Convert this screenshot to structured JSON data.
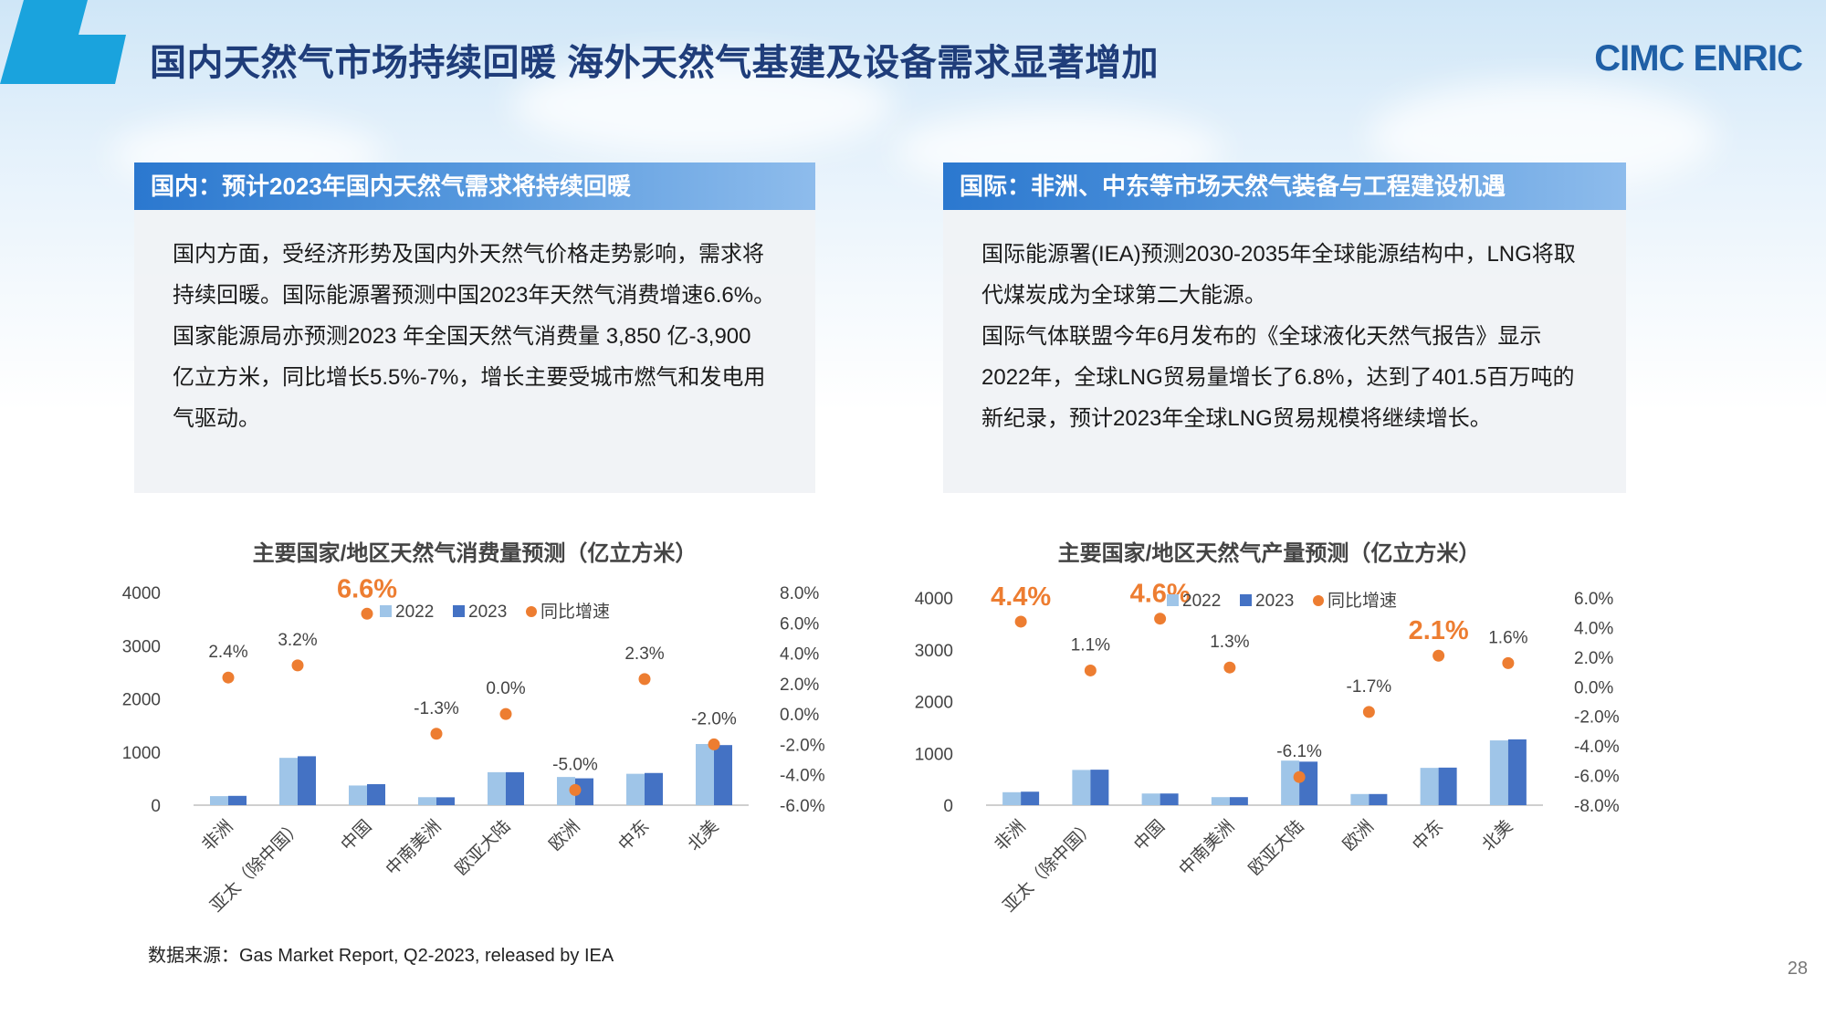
{
  "header": {
    "title": "国内天然气市场持续回暖 海外天然气基建及设备需求显著增加",
    "logo": "CIMC ENRIC"
  },
  "colors": {
    "accent_dark": "#1f3d7a",
    "bar_2022": "#9fc5e8",
    "bar_2023": "#4472c4",
    "growth_dot": "#ed7d31",
    "label_highlight": "#ed7d31"
  },
  "left_card": {
    "heading": "国内：预计2023年国内天然气需求将持续回暖",
    "paragraphs": [
      "国内方面，受经济形势及国内外天然气价格走势影响，需求将持续回暖。国际能源署预测中国2023年天然气消费增速6.6%。",
      "国家能源局亦预测2023 年全国天然气消费量 3,850 亿-3,900 亿立方米，同比增长5.5%-7%，增长主要受城市燃气和发电用气驱动。"
    ]
  },
  "right_card": {
    "heading": "国际：非洲、中东等市场天然气装备与工程建设机遇",
    "paragraphs": [
      "国际能源署(IEA)预测2030-2035年全球能源结构中，LNG将取代煤炭成为全球第二大能源。",
      "国际气体联盟今年6月发布的《全球液化天然气报告》显示2022年，全球LNG贸易量增长了6.8%，达到了401.5百万吨的新纪录，预计2023年全球LNG贸易规模将继续增长。"
    ]
  },
  "chart_data": [
    {
      "type": "bar",
      "title": "主要国家/地区天然气消费量预测（亿立方米）",
      "categories": [
        "非洲",
        "亚太（除中国）",
        "中国",
        "中南美洲",
        "欧亚大陆",
        "欧洲",
        "中东",
        "北美"
      ],
      "series": [
        {
          "name": "2022",
          "kind": "bar",
          "axis": "left",
          "values": [
            170,
            890,
            370,
            150,
            620,
            530,
            590,
            1150
          ]
        },
        {
          "name": "2023",
          "kind": "bar",
          "axis": "left",
          "values": [
            175,
            920,
            395,
            148,
            620,
            505,
            605,
            1130
          ]
        },
        {
          "name": "同比增速",
          "kind": "scatter",
          "axis": "right",
          "values": [
            2.4,
            3.2,
            6.6,
            -1.3,
            0.0,
            -5.0,
            2.3,
            -2.0
          ]
        }
      ],
      "data_labels": [
        "2.4%",
        "3.2%",
        "6.6%",
        "-1.3%",
        "0.0%",
        "-5.0%",
        "2.3%",
        "-2.0%"
      ],
      "highlight_index": 2,
      "y_left": {
        "min": 0,
        "max": 4000,
        "step": 1000,
        "ticks": [
          "0",
          "1000",
          "2000",
          "3000",
          "4000"
        ]
      },
      "y_right": {
        "min": -6,
        "max": 8,
        "step": 2,
        "ticks": [
          "-6.0%",
          "-4.0%",
          "-2.0%",
          "0.0%",
          "2.0%",
          "4.0%",
          "6.0%",
          "8.0%"
        ]
      },
      "legend": [
        "2022",
        "2023",
        "同比增速"
      ],
      "legend_position": "top",
      "grid": false
    },
    {
      "type": "bar",
      "title": "主要国家/地区天然气产量预测（亿立方米）",
      "categories": [
        "非洲",
        "亚太（除中国）",
        "中国",
        "中南美洲",
        "欧亚大陆",
        "欧洲",
        "中东",
        "北美"
      ],
      "series": [
        {
          "name": "2022",
          "kind": "bar",
          "axis": "left",
          "values": [
            250,
            680,
            225,
            155,
            860,
            215,
            720,
            1250
          ]
        },
        {
          "name": "2023",
          "kind": "bar",
          "axis": "left",
          "values": [
            260,
            685,
            225,
            155,
            840,
            215,
            725,
            1270
          ]
        },
        {
          "name": "同比增速",
          "kind": "scatter",
          "axis": "right",
          "values": [
            4.4,
            1.1,
            4.6,
            1.3,
            -6.1,
            -1.7,
            2.1,
            1.6
          ]
        }
      ],
      "data_labels": [
        "4.4%",
        "1.1%",
        "4.6%",
        "1.3%",
        "-6.1%",
        "-1.7%",
        "2.1%",
        "1.6%"
      ],
      "highlight_indices": [
        0,
        2,
        6
      ],
      "y_left": {
        "min": 0,
        "max": 4000,
        "step": 1000,
        "ticks": [
          "0",
          "1000",
          "2000",
          "3000",
          "4000"
        ]
      },
      "y_right": {
        "min": -8,
        "max": 6,
        "step": 2,
        "ticks": [
          "-8.0%",
          "-6.0%",
          "-4.0%",
          "-2.0%",
          "0.0%",
          "2.0%",
          "4.0%",
          "6.0%"
        ]
      },
      "legend": [
        "2022",
        "2023",
        "同比增速"
      ],
      "legend_position": "top",
      "grid": false
    }
  ],
  "footer": {
    "source": "数据来源：Gas Market Report, Q2-2023, released by IEA",
    "page_number": "28"
  }
}
